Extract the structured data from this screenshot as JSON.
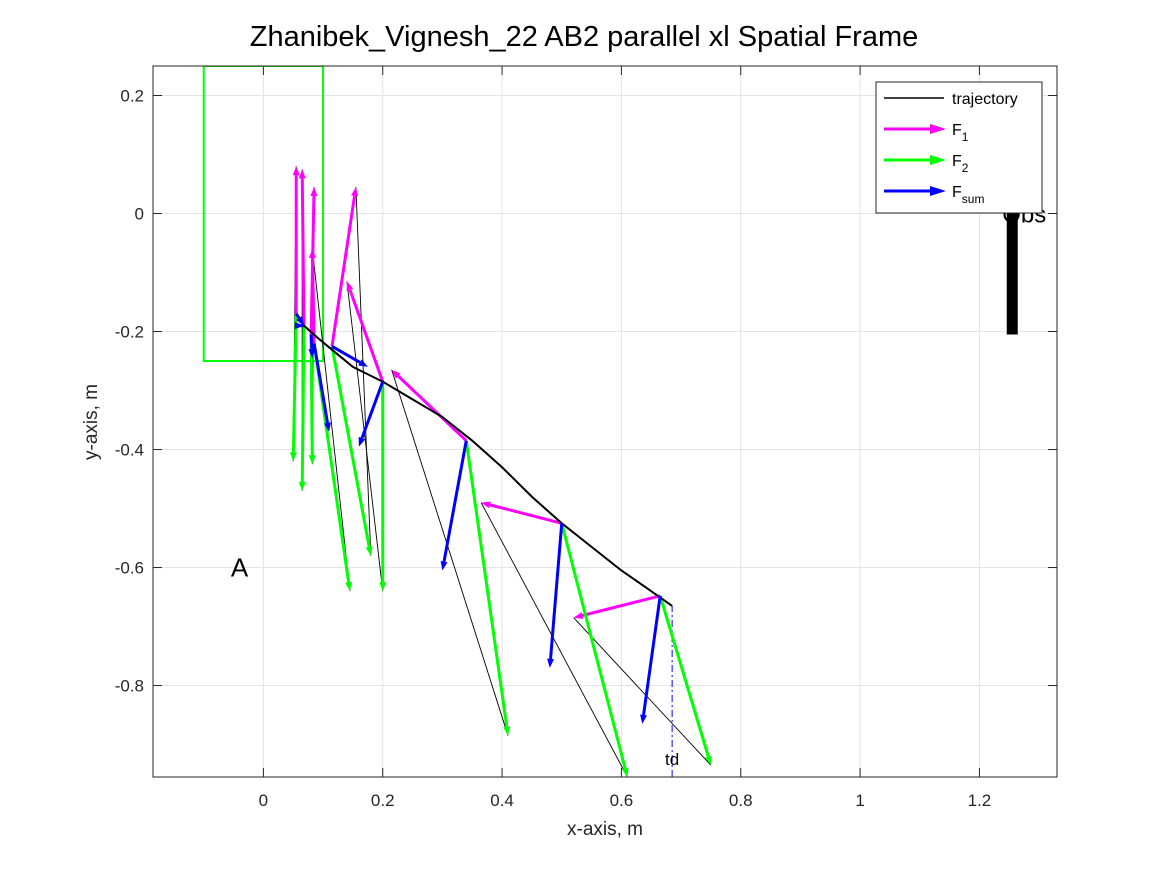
{
  "chart_data": {
    "type": "line",
    "title": "Zhanibek_Vignesh_22    AB2    parallel    xl  Spatial Frame",
    "xlabel": "x-axis, m",
    "ylabel": "y-axis, m",
    "xlim": [
      -0.185,
      1.33
    ],
    "ylim": [
      -0.955,
      0.25
    ],
    "xticks": [
      0,
      0.2,
      0.4,
      0.6,
      0.8,
      1,
      1.2
    ],
    "xtick_labels": [
      "0",
      "0.2",
      "0.4",
      "0.6",
      "0.8",
      "1",
      "1.2"
    ],
    "yticks": [
      0.2,
      0,
      -0.2,
      -0.4,
      -0.6,
      -0.8
    ],
    "ytick_labels": [
      "0.2",
      "0",
      "-0.2",
      "-0.4",
      "-0.6",
      "-0.8"
    ],
    "grid": true,
    "legend_position": "top-right",
    "colors": {
      "trajectory": "#000000",
      "F1": "#ff00ff",
      "F2": "#00ff00",
      "Fsum": "#0000ff",
      "start_box": "#00ff00",
      "obstacle": "#000000",
      "td_line": "#0000ff"
    },
    "legend": [
      {
        "key": "trajectory",
        "label": "trajectory",
        "sub": ""
      },
      {
        "key": "F1",
        "label": "F",
        "sub": "1"
      },
      {
        "key": "F2",
        "label": "F",
        "sub": "2"
      },
      {
        "key": "Fsum",
        "label": "F",
        "sub": "sum"
      }
    ],
    "annotations": {
      "start_label": "A",
      "obstacle_label": "Obs",
      "td_label": "td"
    },
    "trajectory": [
      [
        0.055,
        -0.17
      ],
      [
        0.068,
        -0.19
      ],
      [
        0.09,
        -0.21
      ],
      [
        0.12,
        -0.235
      ],
      [
        0.15,
        -0.26
      ],
      [
        0.2,
        -0.285
      ],
      [
        0.25,
        -0.315
      ],
      [
        0.3,
        -0.345
      ],
      [
        0.35,
        -0.385
      ],
      [
        0.4,
        -0.43
      ],
      [
        0.45,
        -0.48
      ],
      [
        0.5,
        -0.525
      ],
      [
        0.55,
        -0.565
      ],
      [
        0.6,
        -0.605
      ],
      [
        0.65,
        -0.64
      ],
      [
        0.685,
        -0.665
      ]
    ],
    "start_box": {
      "x": [
        -0.1,
        0.1
      ],
      "y": [
        -0.25,
        0.25
      ]
    },
    "obstacle": {
      "x": 1.255,
      "y": [
        -0.205,
        0.0
      ]
    },
    "td_line": {
      "x": 0.685,
      "y": [
        -0.955,
        -0.665
      ]
    },
    "force_frames": [
      {
        "p": [
          0.055,
          -0.17
        ],
        "f1": [
          0.055,
          0.08
        ],
        "f2": [
          0.05,
          -0.42
        ],
        "fsum": [
          0.068,
          -0.19
        ]
      },
      {
        "p": [
          0.068,
          -0.19
        ],
        "f1": [
          0.065,
          0.075
        ],
        "f2": [
          0.065,
          -0.47
        ],
        "fsum": [
          0.068,
          -0.19
        ]
      },
      {
        "p": [
          0.08,
          -0.205
        ],
        "f1": [
          0.085,
          0.045
        ],
        "f2": [
          0.082,
          -0.425
        ],
        "fsum": [
          0.082,
          -0.245
        ]
      },
      {
        "p": [
          0.085,
          -0.22
        ],
        "f1": [
          0.082,
          -0.06
        ],
        "f2": [
          0.145,
          -0.64
        ],
        "fsum": [
          0.11,
          -0.37
        ]
      },
      {
        "p": [
          0.115,
          -0.225
        ],
        "f1": [
          0.155,
          0.045
        ],
        "f2": [
          0.18,
          -0.58
        ],
        "fsum": [
          0.175,
          -0.26
        ]
      },
      {
        "p": [
          0.2,
          -0.285
        ],
        "f1": [
          0.14,
          -0.115
        ],
        "f2": [
          0.2,
          -0.64
        ],
        "fsum": [
          0.16,
          -0.395
        ]
      },
      {
        "p": [
          0.34,
          -0.385
        ],
        "f1": [
          0.215,
          -0.265
        ],
        "f2": [
          0.41,
          -0.885
        ],
        "fsum": [
          0.3,
          -0.605
        ]
      },
      {
        "p": [
          0.5,
          -0.525
        ],
        "f1": [
          0.365,
          -0.49
        ],
        "f2": [
          0.61,
          -0.955
        ],
        "fsum": [
          0.48,
          -0.77
        ]
      },
      {
        "p": [
          0.665,
          -0.648
        ],
        "f1": [
          0.52,
          -0.685
        ],
        "f2": [
          0.75,
          -0.935
        ],
        "fsum": [
          0.635,
          -0.865
        ]
      }
    ]
  }
}
